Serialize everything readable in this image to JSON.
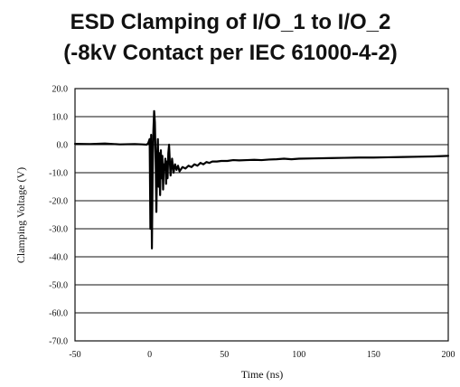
{
  "chart_data": {
    "type": "line",
    "title": "ESD Clamping of I/O_1 to I/O_2",
    "subtitle": "(-8kV Contact per IEC 61000-4-2)",
    "xlabel": "Time (ns)",
    "ylabel": "Clamping Voltage (V)",
    "xlim": [
      -50,
      200
    ],
    "ylim": [
      -70,
      20
    ],
    "x_ticks": [
      -50,
      0,
      50,
      100,
      150,
      200
    ],
    "x_tick_labels": [
      "-50",
      "0",
      "50",
      "100",
      "150",
      "200"
    ],
    "y_ticks": [
      20,
      10,
      0,
      -10,
      -20,
      -30,
      -40,
      -50,
      -60,
      -70
    ],
    "y_tick_labels": [
      "20.0",
      "10.0",
      "0.0",
      "-10.0",
      "-20.0",
      "-30.0",
      "-40.0",
      "-50.0",
      "-60.0",
      "-70.0"
    ],
    "grid": "horizontal",
    "line_color": "#000000",
    "series": [
      {
        "x": [
          -50,
          -40,
          -30,
          -20,
          -10,
          -5,
          -2,
          -1,
          0,
          0.5,
          1,
          1.5,
          2,
          2.5,
          3,
          3.5,
          4,
          4.5,
          5,
          5.5,
          6,
          6.5,
          7,
          7.5,
          8,
          8.5,
          9,
          9.5,
          10,
          10.5,
          11,
          11.5,
          12,
          12.5,
          13,
          13.5,
          14,
          15,
          16,
          17,
          18,
          19,
          20,
          22,
          24,
          26,
          28,
          30,
          32,
          34,
          36,
          38,
          40,
          42,
          45,
          48,
          52,
          56,
          60,
          65,
          70,
          75,
          80,
          85,
          90,
          95,
          100,
          110,
          120,
          130,
          140,
          150,
          160,
          170,
          180,
          190,
          200
        ],
        "y": [
          0.3,
          0.2,
          0.4,
          0.1,
          0.2,
          0.1,
          0.0,
          0.5,
          2.0,
          -30.0,
          3.5,
          -37.0,
          -10.0,
          5.0,
          12.0,
          8.0,
          -5.0,
          -24.0,
          -6.0,
          2.0,
          -15.0,
          -3.0,
          -18.0,
          -2.0,
          -12.0,
          -4.0,
          -16.0,
          -7.0,
          -9.0,
          -5.0,
          -14.0,
          -6.0,
          -12.0,
          -3.0,
          0.0,
          -6.0,
          -11.0,
          -5.0,
          -10.0,
          -7.0,
          -9.0,
          -7.5,
          -9.5,
          -8.0,
          -8.5,
          -7.5,
          -8.0,
          -7.0,
          -7.5,
          -6.5,
          -7.0,
          -6.2,
          -6.5,
          -6.0,
          -6.0,
          -5.8,
          -5.8,
          -5.5,
          -5.6,
          -5.5,
          -5.4,
          -5.5,
          -5.3,
          -5.2,
          -5.0,
          -5.2,
          -5.0,
          -4.9,
          -4.8,
          -4.7,
          -4.6,
          -4.6,
          -4.5,
          -4.4,
          -4.3,
          -4.2,
          -4.0
        ]
      }
    ]
  }
}
